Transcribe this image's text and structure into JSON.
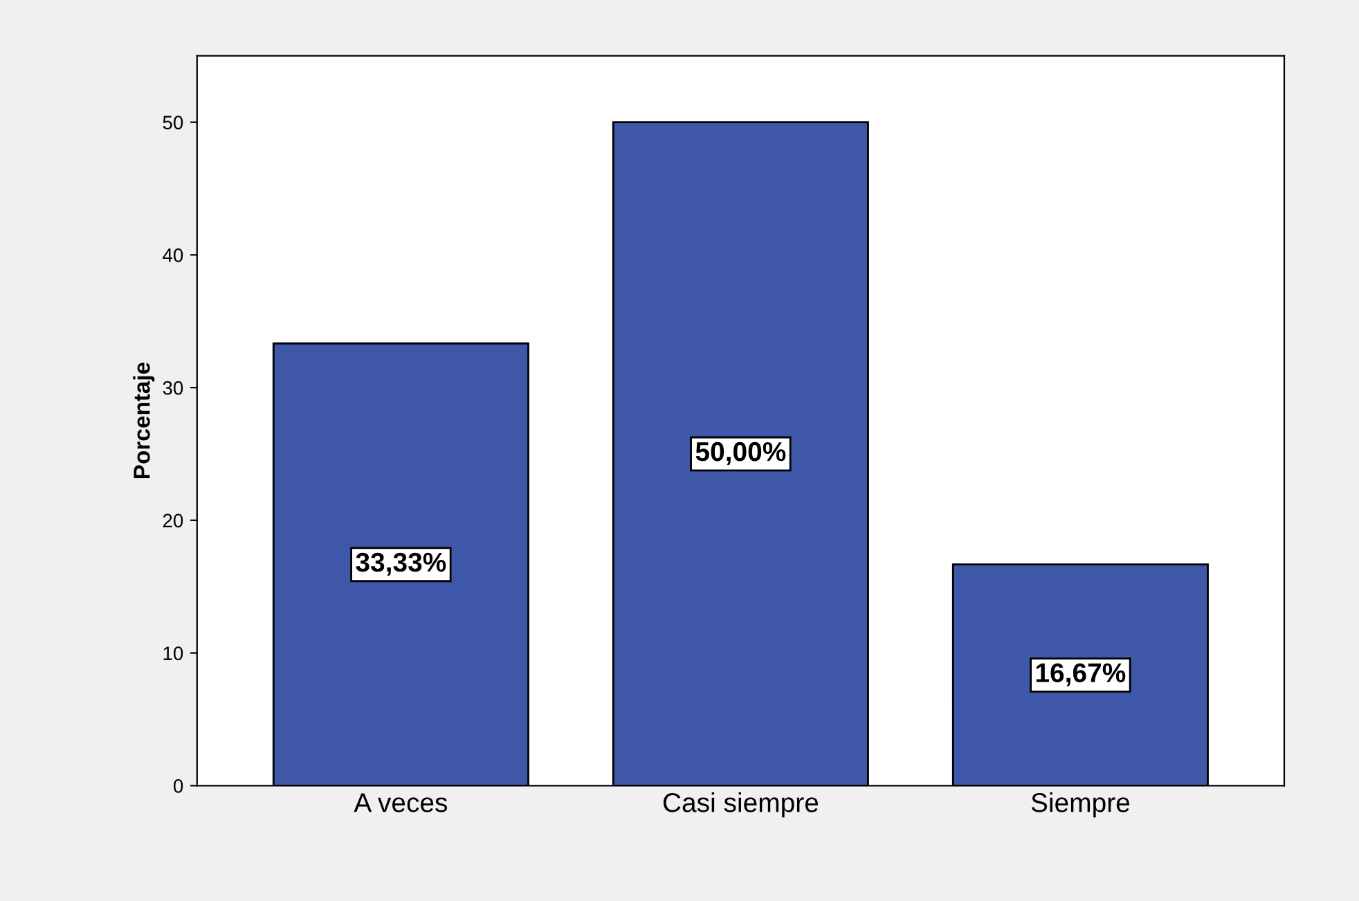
{
  "chart_data": {
    "type": "bar",
    "ylabel": "Porcentaje",
    "categories": [
      "A veces",
      "Casi siempre",
      "Siempre"
    ],
    "values": [
      33.33,
      50.0,
      16.67
    ],
    "value_labels": [
      "33,33%",
      "50,00%",
      "16,67%"
    ],
    "color": "#3e57a8",
    "ylim": [
      0,
      55
    ],
    "yticks": [
      0,
      10,
      20,
      30,
      40,
      50
    ],
    "grid": false
  }
}
